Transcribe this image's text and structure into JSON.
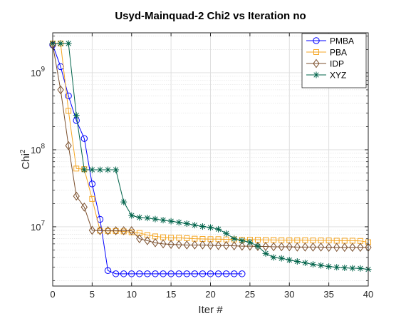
{
  "chart_data": {
    "type": "line",
    "title": "Usyd-Mainquad-2 Chi2 vs Iteration no",
    "xlabel": "Iter #",
    "ylabel": "Chi",
    "ylabel_superscript": "2",
    "x_scale": "linear",
    "y_scale": "log",
    "xlim": [
      0,
      40
    ],
    "ylim": [
      1700000,
      3300000000
    ],
    "x_ticks": [
      0,
      5,
      10,
      15,
      20,
      25,
      30,
      35,
      40
    ],
    "y_ticks": [
      {
        "value": 10000000,
        "mantissa": "10",
        "exponent": "7"
      },
      {
        "value": 100000000,
        "mantissa": "10",
        "exponent": "8"
      },
      {
        "value": 1000000000,
        "mantissa": "10",
        "exponent": "9"
      }
    ],
    "grid": true,
    "minor_grid": true,
    "legend_position": "top-right",
    "series": [
      {
        "name": "PMBA",
        "color": "#0000ff",
        "marker": "circle",
        "x": [
          0,
          1,
          2,
          3,
          4,
          5,
          6,
          7,
          8,
          9,
          10,
          11,
          12,
          13,
          14,
          15,
          16,
          17,
          18,
          19,
          20,
          21,
          22,
          23,
          24
        ],
        "y": [
          2300000000,
          1200000000,
          500000000,
          240000000,
          140000000,
          36000000,
          12500000,
          2700000,
          2450000,
          2450000,
          2450000,
          2450000,
          2450000,
          2450000,
          2450000,
          2450000,
          2450000,
          2450000,
          2450000,
          2450000,
          2450000,
          2450000,
          2450000,
          2450000,
          2450000
        ]
      },
      {
        "name": "PBA",
        "color": "#f5a623",
        "marker": "square",
        "x": [
          0,
          1,
          2,
          3,
          4,
          5,
          6,
          7,
          8,
          9,
          10,
          11,
          12,
          13,
          14,
          15,
          16,
          17,
          18,
          19,
          20,
          21,
          22,
          23,
          24,
          25,
          26,
          27,
          28,
          29,
          30,
          31,
          32,
          33,
          34,
          35,
          36,
          37,
          38,
          39,
          40
        ],
        "y": [
          2400000000,
          2400000000,
          320000000,
          57000000,
          56000000,
          23000000,
          8900000,
          8800000,
          8800000,
          8700000,
          8500000,
          8300000,
          7800000,
          7500000,
          7300000,
          7200000,
          7200000,
          7100000,
          7000000,
          6950000,
          6900000,
          6900000,
          6850000,
          6850000,
          6800000,
          6800000,
          6800000,
          6750000,
          6750000,
          6700000,
          6700000,
          6700000,
          6700000,
          6650000,
          6650000,
          6650000,
          6600000,
          6600000,
          6600000,
          6550000,
          6300000
        ]
      },
      {
        "name": "IDP",
        "color": "#7b4f2c",
        "marker": "diamond",
        "x": [
          0,
          1,
          2,
          3,
          4,
          5,
          6,
          7,
          8,
          9,
          10,
          11,
          12,
          13,
          14,
          15,
          16,
          17,
          18,
          19,
          20,
          21,
          22,
          23,
          24,
          25,
          26,
          27,
          28,
          29,
          30,
          31,
          32,
          33,
          34,
          35,
          36,
          37,
          38,
          39,
          40
        ],
        "y": [
          2300000000,
          600000000,
          113000000,
          25000000,
          18000000,
          9000000,
          8900000,
          8900000,
          8900000,
          8900000,
          8900000,
          7000000,
          6600000,
          6200000,
          6000000,
          5900000,
          5850000,
          5800000,
          5800000,
          5800000,
          5750000,
          5700000,
          5700000,
          5650000,
          5600000,
          5600000,
          5550000,
          5550000,
          5500000,
          5500000,
          5500000,
          5450000,
          5450000,
          5450000,
          5450000,
          5400000,
          5400000,
          5400000,
          5400000,
          5400000,
          5400000
        ]
      },
      {
        "name": "XYZ",
        "color": "#00634a",
        "marker": "asterisk",
        "x": [
          0,
          1,
          2,
          3,
          4,
          5,
          6,
          7,
          8,
          9,
          10,
          11,
          12,
          13,
          14,
          15,
          16,
          17,
          18,
          19,
          20,
          21,
          22,
          23,
          24,
          25,
          26,
          27,
          28,
          29,
          30,
          31,
          32,
          33,
          34,
          35,
          36,
          37,
          38,
          39,
          40
        ],
        "y": [
          2400000000,
          2400000000,
          2400000000,
          280000000,
          55000000,
          55000000,
          55000000,
          55000000,
          55000000,
          21000000,
          14000000,
          13200000,
          13000000,
          12600000,
          12200000,
          11800000,
          11400000,
          11000000,
          10500000,
          10100000,
          9800000,
          9300000,
          8200000,
          7000000,
          6600000,
          6300000,
          5600000,
          4500000,
          4000000,
          3900000,
          3700000,
          3550000,
          3400000,
          3250000,
          3150000,
          3050000,
          2980000,
          2930000,
          2900000,
          2880000,
          2800000
        ]
      }
    ]
  }
}
